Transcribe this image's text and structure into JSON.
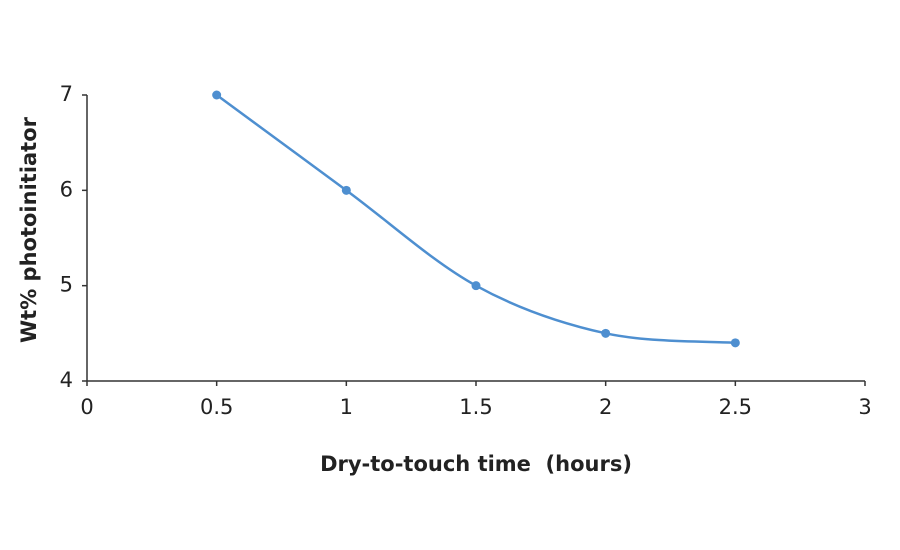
{
  "chart_data": {
    "type": "line",
    "x": [
      0.5,
      1,
      1.5,
      2,
      2.5
    ],
    "series": [
      {
        "color": "#4e8fd0",
        "values": [
          7,
          6,
          5,
          4.5,
          4.4
        ]
      }
    ],
    "xlim": [
      0,
      3
    ],
    "xticks": [
      0,
      0.5,
      1,
      1.5,
      2,
      2.5,
      3
    ],
    "ylim": [
      4,
      7
    ],
    "yticks": [
      4,
      5,
      6,
      7
    ],
    "xlabel": "Dry-to-touch time  (hours)",
    "ylabel": "Wt% photoinitiator",
    "smooth": true
  }
}
